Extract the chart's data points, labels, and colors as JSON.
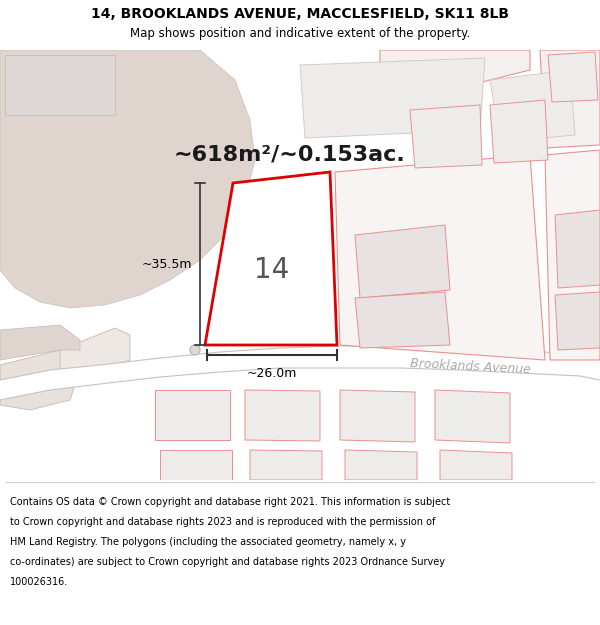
{
  "title_line1": "14, BROOKLANDS AVENUE, MACCLESFIELD, SK11 8LB",
  "title_line2": "Map shows position and indicative extent of the property.",
  "area_text": "~618m²/~0.153ac.",
  "label_number": "14",
  "dim_vertical": "~35.5m",
  "dim_horizontal": "~26.0m",
  "street_name": "Brooklands Avenue",
  "footer_lines": [
    "Contains OS data © Crown copyright and database right 2021. This information is subject",
    "to Crown copyright and database rights 2023 and is reproduced with the permission of",
    "HM Land Registry. The polygons (including the associated geometry, namely x, y",
    "co-ordinates) are subject to Crown copyright and database rights 2023 Ordnance Survey",
    "100026316."
  ],
  "map_bg": "#f5eeea",
  "highlight_color": "#dd0000",
  "outline_color": "#e89090",
  "building_fill": "#e8e2e2",
  "building_fill2": "#eeebeb",
  "large_area_fill": "#e0d5ce",
  "road_fill": "#ffffff",
  "white_fill": "#ffffff",
  "title_bg": "#ffffff",
  "footer_bg": "#ffffff",
  "dim_line_color": "#333333",
  "street_text_color": "#aaaaaa",
  "number_color": "#555555"
}
